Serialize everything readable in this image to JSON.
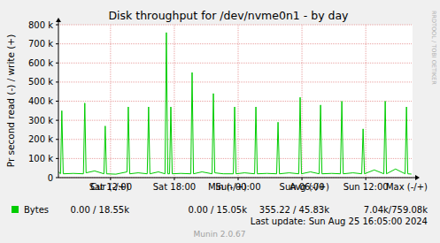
{
  "chart_data": {
    "type": "line",
    "title": "Disk throughput for /dev/nvme0n1 - by day",
    "y_label": "Pr second read (-) / write (+)",
    "watermark": "RRDTOOL / TOBI OETIKER",
    "x": [
      7.1,
      7.3,
      7.42,
      7.55,
      8.5,
      9.45,
      9.58,
      9.7,
      10.5,
      11.38,
      11.5,
      11.62,
      12.5,
      13.55,
      13.67,
      13.8,
      14.6,
      15.45,
      15.58,
      15.7,
      16.5,
      17.12,
      17.25,
      17.38,
      17.55,
      17.67,
      17.8,
      18.6,
      19.55,
      19.67,
      19.8,
      20.6,
      21.55,
      21.67,
      21.8,
      22.6,
      23.55,
      23.67,
      23.8,
      24.6,
      25.55,
      25.67,
      25.8,
      26.7,
      27.62,
      27.75,
      27.88,
      28.8,
      29.7,
      29.83,
      29.95,
      30.8,
      31.62,
      31.75,
      31.88,
      32.8,
      33.62,
      33.75,
      33.88,
      34.8,
      35.62,
      35.75,
      35.88,
      36.8,
      37.7,
      37.83,
      37.95,
      38.8,
      39.7,
      39.83,
      39.95,
      40.3
    ],
    "series": [
      {
        "name": "Bytes",
        "color": "#00cc00",
        "values": [
          30000,
          20000,
          350000,
          20000,
          22000,
          20000,
          390000,
          25000,
          35000,
          20000,
          270000,
          20000,
          18000,
          30000,
          370000,
          20000,
          25000,
          20000,
          370000,
          20000,
          30000,
          20000,
          759080,
          20000,
          20000,
          370000,
          20000,
          22000,
          20000,
          550000,
          20000,
          30000,
          20000,
          440000,
          25000,
          20000,
          20000,
          370000,
          20000,
          25000,
          20000,
          370000,
          20000,
          22000,
          20000,
          290000,
          20000,
          25000,
          20000,
          420000,
          20000,
          30000,
          20000,
          380000,
          20000,
          22000,
          20000,
          400000,
          20000,
          25000,
          20000,
          255000,
          20000,
          40000,
          20000,
          400000,
          20000,
          45000,
          20000,
          370000,
          20000,
          18550
        ]
      }
    ],
    "xlim": [
      7.1,
      40.4
    ],
    "xticks": [
      {
        "value": 12,
        "label": "Sat 12:00"
      },
      {
        "value": 18,
        "label": "Sat 18:00"
      },
      {
        "value": 24,
        "label": "Sun 00:00"
      },
      {
        "value": 30,
        "label": "Sun 06:00"
      },
      {
        "value": 36,
        "label": "Sun 12:00"
      }
    ],
    "ylim": [
      0,
      800000
    ],
    "yticks": [
      0,
      {
        "value": 100000,
        "label": "100 k"
      },
      {
        "value": 200000,
        "label": "200 k"
      },
      {
        "value": 300000,
        "label": "300 k"
      },
      {
        "value": 400000,
        "label": "400 k"
      },
      {
        "value": 500000,
        "label": "500 k"
      },
      {
        "value": 600000,
        "label": "600 k"
      },
      {
        "value": 700000,
        "label": "700 k"
      },
      {
        "value": 800000,
        "label": "800 k"
      }
    ],
    "grid": true,
    "summary": {
      "headers": [
        "Cur (-/+)",
        "Min (-/+)",
        "Avg (-/+)",
        "Max (-/+)"
      ],
      "cells": [
        "0.00 / 18.55k",
        "0.00 / 15.05k",
        "355.22 / 45.83k",
        "7.04k/759.08k"
      ]
    },
    "footer": [
      "Last update: Sun Aug 25 16:05:00 2024",
      "Munin 2.0.67"
    ]
  }
}
